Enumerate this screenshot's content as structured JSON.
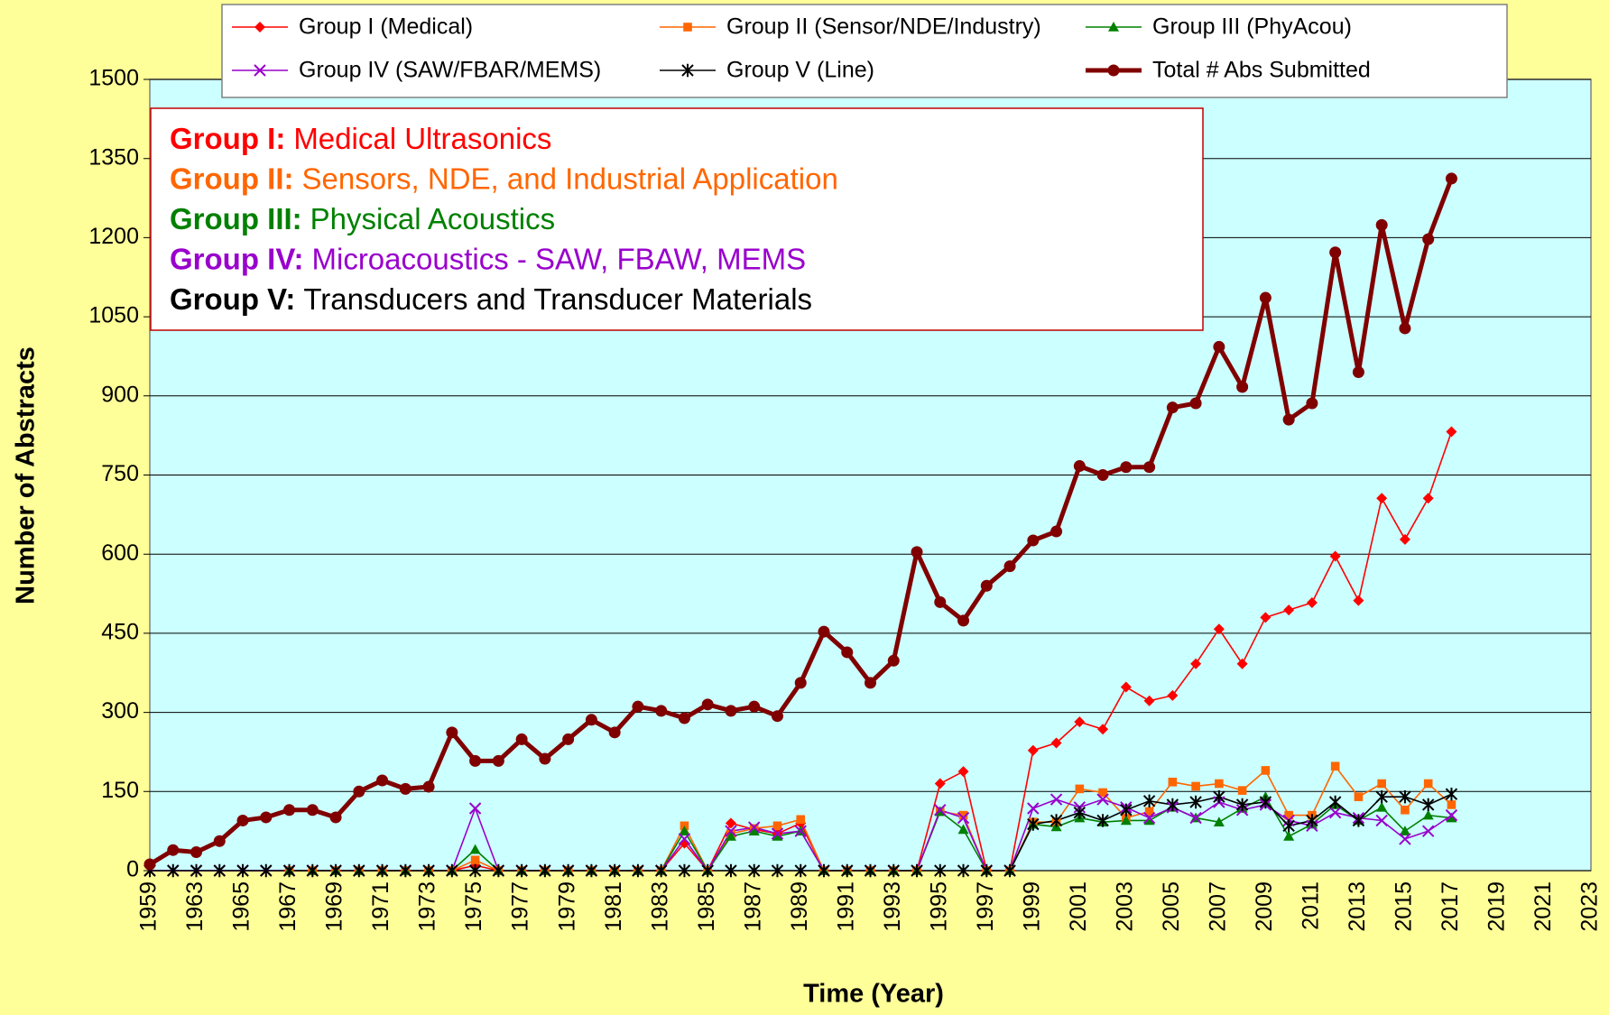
{
  "chart_data": {
    "type": "line",
    "y_label": "Number of Abstracts",
    "x_label": "Time (Year)",
    "categories": [
      "1959",
      null,
      "1963",
      null,
      "1965",
      null,
      "1967",
      null,
      "1969",
      null,
      "1971",
      null,
      "1973",
      null,
      "1975",
      null,
      "1977",
      null,
      "1979",
      null,
      "1981",
      null,
      "1983",
      null,
      "1985",
      null,
      "1987",
      null,
      "1989",
      null,
      "1991",
      null,
      "1993",
      null,
      "1995",
      null,
      "1997",
      null,
      "1999",
      null,
      "2001",
      null,
      "2003",
      null,
      "2005",
      null,
      "2007",
      null,
      "2009",
      null,
      "2011",
      null,
      "2013",
      null,
      "2015",
      null,
      "2017",
      null,
      "2019",
      null,
      "2021",
      null,
      "2023"
    ],
    "ylim": [
      0,
      1500
    ],
    "yticks": [
      0,
      150,
      300,
      450,
      600,
      750,
      900,
      1050,
      1200,
      1350,
      1500
    ],
    "grid": true,
    "series": [
      {
        "name": "Group I (Medical)",
        "color": "#ff0000",
        "marker": "diamond",
        "values": [
          null,
          null,
          null,
          null,
          null,
          null,
          0,
          0,
          0,
          0,
          0,
          0,
          0,
          0,
          10,
          0,
          0,
          0,
          0,
          0,
          0,
          0,
          0,
          52,
          0,
          90,
          78,
          70,
          90,
          0,
          0,
          0,
          0,
          0,
          165,
          188,
          0,
          0,
          228,
          242,
          282,
          268,
          348,
          322,
          332,
          392,
          458,
          392,
          480,
          494,
          508,
          596,
          512,
          706,
          628,
          706,
          832,
          null,
          null,
          null,
          null,
          null,
          null
        ]
      },
      {
        "name": "Group II (Sensor/NDE/Industry)",
        "color": "#ff6600",
        "marker": "square",
        "values": [
          null,
          null,
          null,
          null,
          null,
          null,
          0,
          0,
          0,
          0,
          0,
          0,
          0,
          0,
          20,
          0,
          0,
          0,
          0,
          0,
          0,
          0,
          0,
          85,
          0,
          70,
          80,
          85,
          97,
          0,
          0,
          0,
          0,
          0,
          112,
          105,
          0,
          0,
          92,
          92,
          155,
          148,
          100,
          112,
          168,
          160,
          165,
          152,
          190,
          105,
          105,
          198,
          140,
          165,
          115,
          165,
          125,
          null,
          null,
          null,
          null,
          null,
          null
        ]
      },
      {
        "name": "Group III (PhyAcou)",
        "color": "#008000",
        "marker": "triangle",
        "values": [
          null,
          null,
          null,
          null,
          null,
          null,
          0,
          0,
          0,
          0,
          0,
          0,
          0,
          0,
          40,
          0,
          0,
          0,
          0,
          0,
          0,
          0,
          0,
          75,
          0,
          65,
          75,
          65,
          75,
          0,
          0,
          0,
          0,
          0,
          112,
          78,
          0,
          0,
          88,
          83,
          100,
          92,
          95,
          95,
          120,
          100,
          92,
          118,
          140,
          65,
          88,
          125,
          95,
          120,
          75,
          105,
          100,
          null,
          null,
          null,
          null,
          null,
          null
        ]
      },
      {
        "name": "Group IV (SAW/FBAR/MEMS)",
        "color": "#9900cc",
        "marker": "x",
        "values": [
          0,
          0,
          0,
          0,
          0,
          0,
          0,
          0,
          0,
          0,
          0,
          0,
          0,
          0,
          118,
          0,
          0,
          0,
          0,
          0,
          0,
          0,
          0,
          60,
          0,
          75,
          82,
          70,
          75,
          0,
          0,
          0,
          0,
          0,
          115,
          100,
          0,
          0,
          118,
          135,
          120,
          135,
          120,
          100,
          120,
          100,
          130,
          115,
          125,
          95,
          85,
          110,
          100,
          95,
          60,
          75,
          105,
          null,
          null,
          null,
          null,
          null,
          null
        ]
      },
      {
        "name": "Group V (Line)",
        "color": "#000000",
        "marker": "star",
        "values": [
          0,
          0,
          0,
          0,
          0,
          0,
          0,
          0,
          0,
          0,
          0,
          0,
          0,
          0,
          0,
          0,
          0,
          0,
          0,
          0,
          0,
          0,
          0,
          0,
          0,
          0,
          0,
          0,
          0,
          0,
          0,
          0,
          0,
          0,
          0,
          0,
          0,
          0,
          88,
          95,
          110,
          95,
          115,
          132,
          125,
          130,
          140,
          125,
          130,
          85,
          95,
          130,
          95,
          140,
          140,
          125,
          145,
          null,
          null,
          null,
          null,
          null,
          null
        ]
      },
      {
        "name": "Total # Abs Submitted",
        "color": "#800000",
        "marker": "circle",
        "values": [
          12,
          39,
          35,
          56,
          95,
          101,
          115,
          115,
          101,
          150,
          171,
          155,
          159,
          262,
          208,
          208,
          249,
          212,
          249,
          286,
          262,
          311,
          303,
          289,
          315,
          303,
          311,
          293,
          356,
          453,
          414,
          356,
          398,
          604,
          509,
          474,
          540,
          577,
          626,
          643,
          767,
          750,
          765,
          765,
          878,
          886,
          993,
          917,
          1086,
          855,
          886,
          1172,
          945,
          1224,
          1028,
          1197,
          1312,
          null,
          null,
          null,
          null,
          null,
          null
        ]
      }
    ],
    "annotations": [
      {
        "label": "Group I:",
        "text": "Medical Ultrasonics",
        "color": "#ff0000"
      },
      {
        "label": "Group II:",
        "text": "Sensors, NDE, and Industrial Application",
        "color": "#ff6600"
      },
      {
        "label": "Group III:",
        "text": "Physical Acoustics",
        "color": "#008000"
      },
      {
        "label": "Group IV:",
        "text": "Microacoustics - SAW, FBAW, MEMS",
        "color": "#9900cc"
      },
      {
        "label": "Group V:",
        "text": "Transducers and Transducer Materials",
        "color": "#000000"
      }
    ]
  }
}
